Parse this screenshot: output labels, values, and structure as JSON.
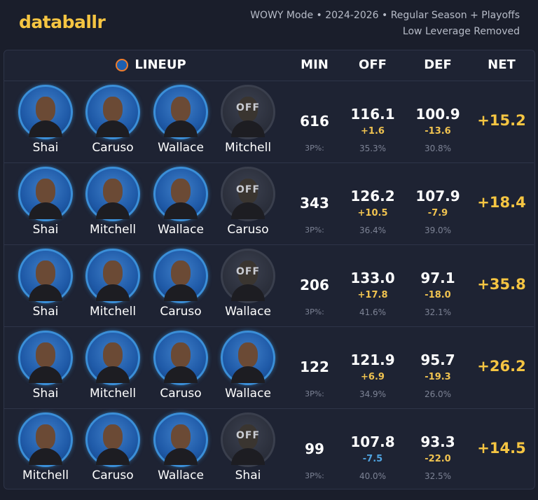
{
  "header": {
    "logo": "databallr",
    "subtitle_line1": "WOWY Mode • 2024-2026 • Regular Season + Playoffs",
    "subtitle_line2": "Low Leverage Removed"
  },
  "table": {
    "columns": [
      "LINEUP",
      "MIN",
      "OFF",
      "DEF",
      "NET"
    ],
    "off_badge": "OFF",
    "three_pt_label": "3P%:",
    "rows": [
      {
        "players": [
          {
            "name": "Shai",
            "off": false
          },
          {
            "name": "Caruso",
            "off": false
          },
          {
            "name": "Wallace",
            "off": false
          },
          {
            "name": "Mitchell",
            "off": true
          }
        ],
        "min": "616",
        "off": "116.1",
        "off_delta": "+1.6",
        "off_delta_color": "#f0c350",
        "off_3p": "35.3%",
        "def": "100.9",
        "def_delta": "-13.6",
        "def_delta_color": "#f0c350",
        "def_3p": "30.8%",
        "net": "+15.2"
      },
      {
        "players": [
          {
            "name": "Shai",
            "off": false
          },
          {
            "name": "Mitchell",
            "off": false
          },
          {
            "name": "Wallace",
            "off": false
          },
          {
            "name": "Caruso",
            "off": true
          }
        ],
        "min": "343",
        "off": "126.2",
        "off_delta": "+10.5",
        "off_delta_color": "#f0c350",
        "off_3p": "36.4%",
        "def": "107.9",
        "def_delta": "-7.9",
        "def_delta_color": "#f0c350",
        "def_3p": "39.0%",
        "net": "+18.4"
      },
      {
        "players": [
          {
            "name": "Shai",
            "off": false
          },
          {
            "name": "Mitchell",
            "off": false
          },
          {
            "name": "Caruso",
            "off": false
          },
          {
            "name": "Wallace",
            "off": true
          }
        ],
        "min": "206",
        "off": "133.0",
        "off_delta": "+17.8",
        "off_delta_color": "#f0c350",
        "off_3p": "41.6%",
        "def": "97.1",
        "def_delta": "-18.0",
        "def_delta_color": "#f0c350",
        "def_3p": "32.1%",
        "net": "+35.8"
      },
      {
        "players": [
          {
            "name": "Shai",
            "off": false
          },
          {
            "name": "Mitchell",
            "off": false
          },
          {
            "name": "Caruso",
            "off": false
          },
          {
            "name": "Wallace",
            "off": false
          }
        ],
        "min": "122",
        "off": "121.9",
        "off_delta": "+6.9",
        "off_delta_color": "#f0c350",
        "off_3p": "34.9%",
        "def": "95.7",
        "def_delta": "-19.3",
        "def_delta_color": "#f0c350",
        "def_3p": "26.0%",
        "net": "+26.2"
      },
      {
        "players": [
          {
            "name": "Mitchell",
            "off": false
          },
          {
            "name": "Caruso",
            "off": false
          },
          {
            "name": "Wallace",
            "off": false
          },
          {
            "name": "Shai",
            "off": true
          }
        ],
        "min": "99",
        "off": "107.8",
        "off_delta": "-7.5",
        "off_delta_color": "#4fa3e0",
        "off_3p": "40.0%",
        "def": "93.3",
        "def_delta": "-22.0",
        "def_delta_color": "#f0c350",
        "def_3p": "32.5%",
        "net": "+14.5"
      }
    ]
  }
}
